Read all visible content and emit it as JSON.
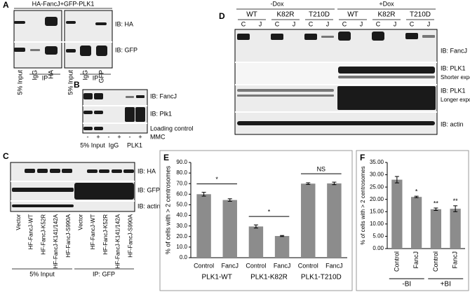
{
  "panels": {
    "A": {
      "letter": "A",
      "header": "HA-FancJ+GFP-PLK1",
      "blots": [
        "IB: HA",
        "IB: GFP"
      ],
      "lanes": [
        "5% Input",
        "IgG",
        "HA",
        "5% Input",
        "IgG",
        "GFP"
      ],
      "groups": [
        "IP",
        "IP"
      ]
    },
    "B": {
      "letter": "B",
      "blots": [
        "IB: FancJ",
        "IB: Plk1",
        "Loading control"
      ],
      "treatment_label": "MMC",
      "treatment": [
        "-",
        "+",
        "-",
        "+",
        "-",
        "+"
      ],
      "groups": [
        "5% Input",
        "IgG",
        "PLK1"
      ]
    },
    "C": {
      "letter": "C",
      "blots": [
        "IB: HA",
        "IB: GFP",
        "IB: actin"
      ],
      "lanes": [
        "Vector",
        "HF-FancJ-WT",
        "HF-FancJ-K52R",
        "HF-FancJ-K141/142A",
        "HF-FancJ-S990A",
        "Vector",
        "HF-FancJ-WT",
        "HF-FancJ-K52R",
        "HF-FancJ-K141/142A",
        "HF-FancJ-S990A"
      ],
      "groups": [
        "5% Input",
        "IP: GFP"
      ]
    },
    "D": {
      "letter": "D",
      "conditions": [
        "-Dox",
        "+Dox"
      ],
      "mutants": [
        "WT",
        "K82R",
        "T210D",
        "WT",
        "K82R",
        "T210D"
      ],
      "lanes": [
        "C",
        "J",
        "C",
        "J",
        "C",
        "J",
        "C",
        "J",
        "C",
        "J",
        "C",
        "J"
      ],
      "blots": [
        "IB: FancJ",
        "IB: PLK1",
        "IB: PLK1",
        "IB: actin"
      ],
      "notes": [
        "Shorter exposure",
        "Longer exposure"
      ]
    }
  },
  "chart_data": [
    {
      "type": "bar",
      "panel": "E",
      "ylabel": "% of cells with > 2 centrosomes",
      "color": "#8c8c8c",
      "categories": [
        "Control",
        "FancJ",
        "Control",
        "FancJ",
        "Control",
        "FancJ"
      ],
      "groups": [
        "PLK1-WT",
        "PLK1-K82R",
        "PLK1-T210D"
      ],
      "values": [
        60,
        54.5,
        29.5,
        20.5,
        70,
        70.2
      ],
      "errors": [
        1.8,
        1.2,
        1.5,
        0.5,
        0.8,
        1.2
      ],
      "group_annotations": [
        "*",
        "*",
        "NS"
      ],
      "ylim": [
        0,
        90
      ],
      "yticks": [
        {
          "value": 0,
          "label": "0.0"
        },
        {
          "value": 10,
          "label": "10.0"
        },
        {
          "value": 20,
          "label": "20.0"
        },
        {
          "value": 30,
          "label": "30.0"
        },
        {
          "value": 40,
          "label": "40.0"
        },
        {
          "value": 50,
          "label": "50.0"
        },
        {
          "value": 60,
          "label": "60.0"
        },
        {
          "value": 70,
          "label": "70.0"
        },
        {
          "value": 80,
          "label": "80.0"
        },
        {
          "value": 90,
          "label": "90.0"
        }
      ]
    },
    {
      "type": "bar",
      "panel": "F",
      "ylabel": "% of cells with > 2 centrosomes",
      "color": "#8c8c8c",
      "categories": [
        "Control",
        "FancJ",
        "Control",
        "FancJ"
      ],
      "groups": [
        "-BI",
        "+BI"
      ],
      "values": [
        28,
        21,
        16,
        16.2
      ],
      "errors": [
        1.3,
        0.3,
        0.5,
        1.2
      ],
      "annotations": [
        null,
        "*",
        "**",
        "**"
      ],
      "ylim": [
        0,
        35
      ],
      "yticks": [
        {
          "value": 0,
          "label": "0.00"
        },
        {
          "value": 5,
          "label": "5.00"
        },
        {
          "value": 10,
          "label": "10.00"
        },
        {
          "value": 15,
          "label": "15.00"
        },
        {
          "value": 20,
          "label": "20.00"
        },
        {
          "value": 25,
          "label": "25.00"
        },
        {
          "value": 30,
          "label": "30.00"
        },
        {
          "value": 35,
          "label": "35.00"
        }
      ]
    }
  ]
}
